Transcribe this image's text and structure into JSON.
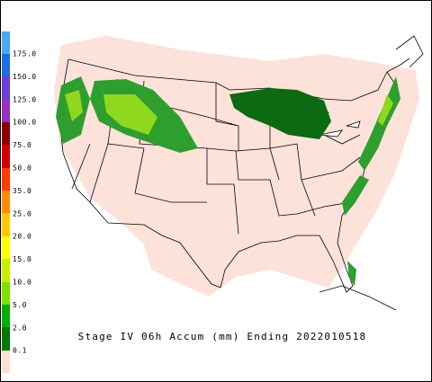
{
  "legend": {
    "labels": [
      "175.0",
      "150.0",
      "125.0",
      "100.0",
      "75.0",
      "50.0",
      "35.0",
      "25.0",
      "20.0",
      "15.0",
      "10.0",
      "5.0",
      "2.0",
      "0.1"
    ]
  },
  "caption": "Stage IV 06h Accum (mm) Ending 2022010518"
}
